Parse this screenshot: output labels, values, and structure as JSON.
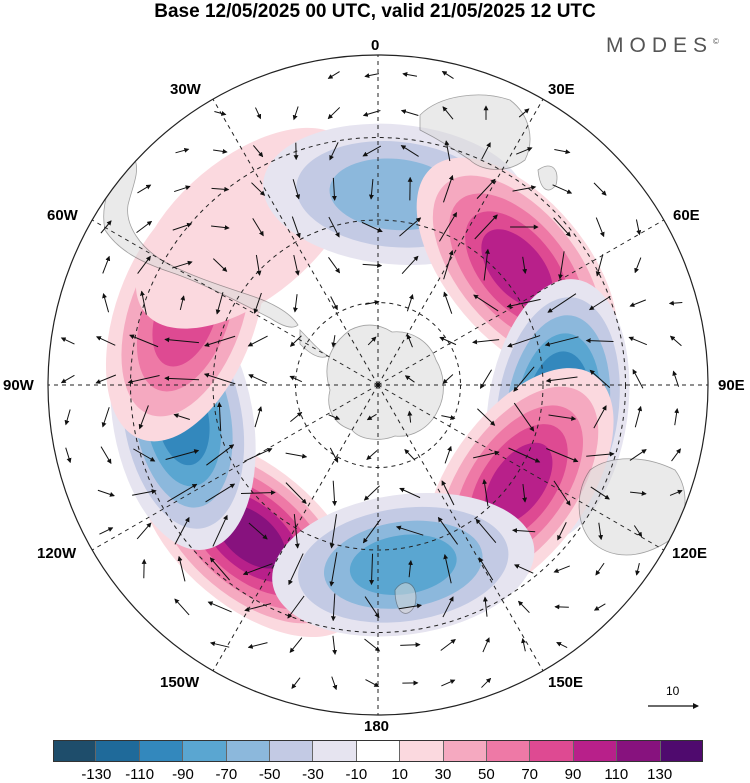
{
  "title": "Base 12/05/2025 00 UTC, valid 21/05/2025 12 UTC",
  "brand": "MODES",
  "brand_mark": "©",
  "longitude_labels": {
    "lon_0": "0",
    "lon_30e": "30E",
    "lon_60e": "60E",
    "lon_90e": "90E",
    "lon_120e": "120E",
    "lon_150e": "150E",
    "lon_180": "180",
    "lon_150w": "150W",
    "lon_120w": "120W",
    "lon_90w": "90W",
    "lon_60w": "60W",
    "lon_30w": "30W"
  },
  "colorbar": {
    "colors": [
      "#1e4d6b",
      "#1f6a9a",
      "#3388bd",
      "#5aa6d1",
      "#8cb8dc",
      "#c3cae4",
      "#e6e4f0",
      "#ffffff",
      "#fbd9df",
      "#f5a9c0",
      "#ee79a6",
      "#de4a92",
      "#b8208a",
      "#87127e",
      "#4f0a6e"
    ],
    "tick_labels": [
      "-130",
      "-110",
      "-90",
      "-70",
      "-50",
      "-30",
      "-10",
      "10",
      "30",
      "50",
      "70",
      "90",
      "110",
      "130"
    ]
  },
  "reference_vector": "10",
  "anomaly_centers": [
    {
      "label": "positive",
      "value": 130,
      "lon_deg": -140,
      "colat": 0.6
    },
    {
      "label": "negative",
      "value": -110,
      "lon_deg": -100,
      "colat": 0.6
    },
    {
      "label": "positive",
      "value": 90,
      "lon_deg": -70,
      "colat": 0.62
    },
    {
      "label": "positive",
      "value": 20,
      "lon_deg": -40,
      "colat": 0.62
    },
    {
      "label": "negative",
      "value": -70,
      "lon_deg": 5,
      "colat": 0.58
    },
    {
      "label": "positive",
      "value": 110,
      "lon_deg": 50,
      "colat": 0.55
    },
    {
      "label": "negative",
      "value": -130,
      "lon_deg": 98,
      "colat": 0.55
    },
    {
      "label": "positive",
      "value": 110,
      "lon_deg": 125,
      "colat": 0.52
    },
    {
      "label": "negative",
      "value": -90,
      "lon_deg": 172,
      "colat": 0.55
    }
  ]
}
